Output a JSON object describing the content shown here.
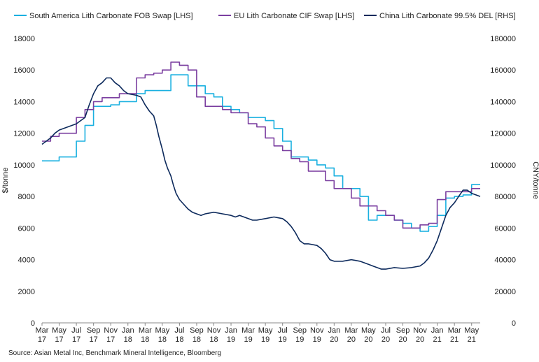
{
  "chart_data": {
    "type": "line",
    "title": "",
    "ylabel_left": "$/tonne",
    "ylabel_right": "CNY/tonne",
    "ylim_left": [
      0,
      18000
    ],
    "ylim_right": [
      0,
      180000
    ],
    "yticks_left": [
      "0",
      "2000",
      "4000",
      "6000",
      "8000",
      "10000",
      "12000",
      "14000",
      "16000",
      "18000"
    ],
    "yticks_right": [
      "0",
      "20000",
      "40000",
      "60000",
      "80000",
      "100000",
      "120000",
      "140000",
      "160000",
      "180000"
    ],
    "xticks": [
      {
        "m": "Mar",
        "y": "17",
        "t": 0
      },
      {
        "m": "May",
        "y": "17",
        "t": 2
      },
      {
        "m": "Jul",
        "y": "17",
        "t": 4
      },
      {
        "m": "Sep",
        "y": "17",
        "t": 6
      },
      {
        "m": "Nov",
        "y": "17",
        "t": 8
      },
      {
        "m": "Jan",
        "y": "18",
        "t": 10
      },
      {
        "m": "Mar",
        "y": "18",
        "t": 12
      },
      {
        "m": "May",
        "y": "18",
        "t": 14
      },
      {
        "m": "Jul",
        "y": "18",
        "t": 16
      },
      {
        "m": "Sep",
        "y": "18",
        "t": 18
      },
      {
        "m": "Nov",
        "y": "18",
        "t": 20
      },
      {
        "m": "Jan",
        "y": "19",
        "t": 22
      },
      {
        "m": "Mar",
        "y": "19",
        "t": 24
      },
      {
        "m": "May",
        "y": "19",
        "t": 26
      },
      {
        "m": "Jul",
        "y": "19",
        "t": 28
      },
      {
        "m": "Sep",
        "y": "19",
        "t": 30
      },
      {
        "m": "Nov",
        "y": "19",
        "t": 32
      },
      {
        "m": "Jan",
        "y": "20",
        "t": 34
      },
      {
        "m": "Mar",
        "y": "20",
        "t": 36
      },
      {
        "m": "May",
        "y": "20",
        "t": 38
      },
      {
        "m": "Jul",
        "y": "20",
        "t": 40
      },
      {
        "m": "Sep",
        "y": "20",
        "t": 42
      },
      {
        "m": "Nov",
        "y": "20",
        "t": 44
      },
      {
        "m": "Jan",
        "y": "21",
        "t": 46
      },
      {
        "m": "Mar",
        "y": "21",
        "t": 48
      },
      {
        "m": "May",
        "y": "21",
        "t": 50
      }
    ],
    "xlim": [
      0,
      51
    ],
    "legend_position": "top",
    "series": [
      {
        "name": "South America Lith Carbonate FOB Swap [LHS]",
        "axis": "left",
        "color": "#1ab0e0",
        "step": true,
        "points": [
          [
            0,
            10250
          ],
          [
            2,
            10250
          ],
          [
            2,
            10500
          ],
          [
            4,
            10500
          ],
          [
            4,
            11500
          ],
          [
            5,
            11500
          ],
          [
            5,
            12500
          ],
          [
            6,
            12500
          ],
          [
            6,
            13700
          ],
          [
            8,
            13700
          ],
          [
            8,
            13800
          ],
          [
            9,
            13800
          ],
          [
            9,
            14000
          ],
          [
            11,
            14000
          ],
          [
            11,
            14500
          ],
          [
            12,
            14500
          ],
          [
            12,
            14700
          ],
          [
            15,
            14700
          ],
          [
            15,
            15700
          ],
          [
            17,
            15700
          ],
          [
            17,
            15000
          ],
          [
            19,
            15000
          ],
          [
            19,
            14500
          ],
          [
            20,
            14500
          ],
          [
            20,
            14300
          ],
          [
            21,
            14300
          ],
          [
            21,
            13700
          ],
          [
            22,
            13700
          ],
          [
            22,
            13500
          ],
          [
            23,
            13500
          ],
          [
            23,
            13300
          ],
          [
            24,
            13300
          ],
          [
            24,
            13000
          ],
          [
            26,
            13000
          ],
          [
            26,
            12800
          ],
          [
            27,
            12800
          ],
          [
            27,
            12300
          ],
          [
            28,
            12300
          ],
          [
            28,
            11500
          ],
          [
            29,
            11500
          ],
          [
            29,
            10500
          ],
          [
            31,
            10500
          ],
          [
            31,
            10300
          ],
          [
            32,
            10300
          ],
          [
            32,
            10000
          ],
          [
            33,
            10000
          ],
          [
            33,
            9800
          ],
          [
            34,
            9800
          ],
          [
            34,
            9300
          ],
          [
            35,
            9300
          ],
          [
            35,
            8500
          ],
          [
            37,
            8500
          ],
          [
            37,
            8000
          ],
          [
            38,
            8000
          ],
          [
            38,
            6500
          ],
          [
            39,
            6500
          ],
          [
            39,
            6800
          ],
          [
            41,
            6800
          ],
          [
            41,
            6500
          ],
          [
            42,
            6500
          ],
          [
            42,
            6300
          ],
          [
            43,
            6300
          ],
          [
            43,
            6000
          ],
          [
            44,
            6000
          ],
          [
            44,
            5800
          ],
          [
            45,
            5800
          ],
          [
            45,
            6100
          ],
          [
            46,
            6100
          ],
          [
            46,
            6800
          ],
          [
            47,
            6800
          ],
          [
            47,
            7900
          ],
          [
            48,
            7900
          ],
          [
            48,
            8000
          ],
          [
            49,
            8000
          ],
          [
            49,
            8100
          ],
          [
            50,
            8100
          ],
          [
            50,
            8750
          ],
          [
            51,
            8750
          ]
        ]
      },
      {
        "name": "EU Lith Carbonate CIF Swap [LHS]",
        "axis": "left",
        "color": "#7b3fa0",
        "step": true,
        "points": [
          [
            0,
            11500
          ],
          [
            1,
            11500
          ],
          [
            1,
            11800
          ],
          [
            2,
            11800
          ],
          [
            2,
            12000
          ],
          [
            4,
            12000
          ],
          [
            4,
            13000
          ],
          [
            5,
            13000
          ],
          [
            5,
            13500
          ],
          [
            6,
            13500
          ],
          [
            6,
            14000
          ],
          [
            7,
            14000
          ],
          [
            7,
            14250
          ],
          [
            9,
            14250
          ],
          [
            9,
            14500
          ],
          [
            11,
            14500
          ],
          [
            11,
            15500
          ],
          [
            12,
            15500
          ],
          [
            12,
            15700
          ],
          [
            13,
            15700
          ],
          [
            13,
            15800
          ],
          [
            14,
            15800
          ],
          [
            14,
            16000
          ],
          [
            15,
            16000
          ],
          [
            15,
            16500
          ],
          [
            16,
            16500
          ],
          [
            16,
            16300
          ],
          [
            17,
            16300
          ],
          [
            17,
            16000
          ],
          [
            18,
            16000
          ],
          [
            18,
            14300
          ],
          [
            19,
            14300
          ],
          [
            19,
            13700
          ],
          [
            21,
            13700
          ],
          [
            21,
            13500
          ],
          [
            22,
            13500
          ],
          [
            22,
            13300
          ],
          [
            24,
            13300
          ],
          [
            24,
            12600
          ],
          [
            25,
            12600
          ],
          [
            25,
            12400
          ],
          [
            26,
            12400
          ],
          [
            26,
            11700
          ],
          [
            27,
            11700
          ],
          [
            27,
            11200
          ],
          [
            28,
            11200
          ],
          [
            28,
            10900
          ],
          [
            29,
            10900
          ],
          [
            29,
            10400
          ],
          [
            30,
            10400
          ],
          [
            30,
            10200
          ],
          [
            31,
            10200
          ],
          [
            31,
            9600
          ],
          [
            33,
            9600
          ],
          [
            33,
            9000
          ],
          [
            34,
            9000
          ],
          [
            34,
            8500
          ],
          [
            36,
            8500
          ],
          [
            36,
            7900
          ],
          [
            37,
            7900
          ],
          [
            37,
            7400
          ],
          [
            39,
            7400
          ],
          [
            39,
            7100
          ],
          [
            40,
            7100
          ],
          [
            40,
            6800
          ],
          [
            41,
            6800
          ],
          [
            41,
            6500
          ],
          [
            42,
            6500
          ],
          [
            42,
            6000
          ],
          [
            44,
            6000
          ],
          [
            44,
            6200
          ],
          [
            45,
            6200
          ],
          [
            45,
            6300
          ],
          [
            46,
            6300
          ],
          [
            46,
            7800
          ],
          [
            47,
            7800
          ],
          [
            47,
            8300
          ],
          [
            50,
            8300
          ],
          [
            50,
            8500
          ],
          [
            51,
            8500
          ]
        ]
      },
      {
        "name": "China Lith Carbonate 99.5% DEL [RHS]",
        "axis": "right",
        "color": "#0d2a5c",
        "step": false,
        "points": [
          [
            0,
            113000
          ],
          [
            0.5,
            115000
          ],
          [
            1,
            117000
          ],
          [
            1.5,
            120000
          ],
          [
            2,
            122000
          ],
          [
            2.5,
            123000
          ],
          [
            3,
            124000
          ],
          [
            3.5,
            125000
          ],
          [
            4,
            126000
          ],
          [
            4.5,
            128000
          ],
          [
            5,
            130000
          ],
          [
            5.5,
            138000
          ],
          [
            6,
            145000
          ],
          [
            6.5,
            150000
          ],
          [
            7,
            152000
          ],
          [
            7.5,
            155000
          ],
          [
            8,
            155000
          ],
          [
            8.5,
            152000
          ],
          [
            9,
            150000
          ],
          [
            9.5,
            147000
          ],
          [
            10,
            145000
          ],
          [
            11,
            144000
          ],
          [
            11.5,
            143000
          ],
          [
            12,
            138000
          ],
          [
            12.5,
            134000
          ],
          [
            13,
            131000
          ],
          [
            13.3,
            125000
          ],
          [
            13.6,
            118000
          ],
          [
            14,
            110000
          ],
          [
            14.3,
            103000
          ],
          [
            14.6,
            98000
          ],
          [
            15,
            93000
          ],
          [
            15.3,
            87000
          ],
          [
            15.6,
            82000
          ],
          [
            16,
            78000
          ],
          [
            16.5,
            75000
          ],
          [
            17,
            72000
          ],
          [
            17.5,
            70000
          ],
          [
            18,
            69000
          ],
          [
            18.5,
            68000
          ],
          [
            19,
            69000
          ],
          [
            20,
            70000
          ],
          [
            21,
            69000
          ],
          [
            22,
            68000
          ],
          [
            22.5,
            67000
          ],
          [
            23,
            68000
          ],
          [
            24,
            66000
          ],
          [
            24.5,
            65000
          ],
          [
            25,
            65000
          ],
          [
            26,
            66000
          ],
          [
            27,
            67000
          ],
          [
            28,
            66000
          ],
          [
            28.5,
            64000
          ],
          [
            29,
            61000
          ],
          [
            29.5,
            57000
          ],
          [
            30,
            52000
          ],
          [
            30.5,
            50000
          ],
          [
            31,
            50000
          ],
          [
            32,
            49000
          ],
          [
            32.5,
            47000
          ],
          [
            33,
            44000
          ],
          [
            33.5,
            40000
          ],
          [
            34,
            39000
          ],
          [
            35,
            39000
          ],
          [
            36,
            40000
          ],
          [
            37,
            39000
          ],
          [
            38,
            37000
          ],
          [
            38.5,
            36000
          ],
          [
            39,
            35000
          ],
          [
            39.5,
            34000
          ],
          [
            40,
            34000
          ],
          [
            41,
            35000
          ],
          [
            42,
            34500
          ],
          [
            43,
            35000
          ],
          [
            44,
            36000
          ],
          [
            44.5,
            38000
          ],
          [
            45,
            41000
          ],
          [
            45.5,
            46000
          ],
          [
            46,
            52000
          ],
          [
            46.5,
            60000
          ],
          [
            47,
            68000
          ],
          [
            47.5,
            73000
          ],
          [
            48,
            76000
          ],
          [
            48.5,
            80000
          ],
          [
            49,
            84000
          ],
          [
            49.5,
            84000
          ],
          [
            50,
            82000
          ],
          [
            50.5,
            81000
          ],
          [
            51,
            80000
          ]
        ]
      }
    ]
  },
  "source_text": "Source: Asian Metal Inc, Benchmark Mineral Intelligence, Bloomberg"
}
